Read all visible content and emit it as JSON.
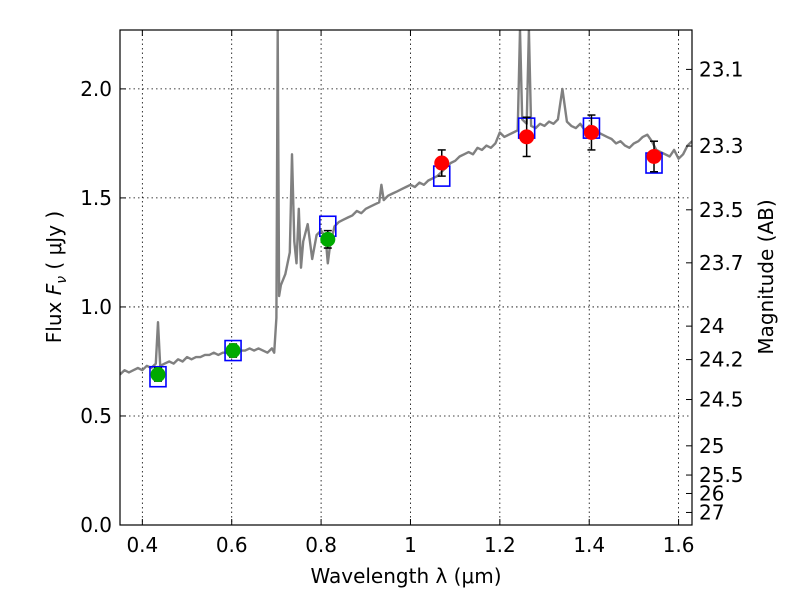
{
  "chart_data": {
    "type": "scatter",
    "title": "",
    "xlabel": "Wavelength  λ (μm)",
    "ylabel": "Flux  F_ν  ( μJy )",
    "ylabel_parts": {
      "prefix": "Flux  ",
      "symbol": "F",
      "subscript": "ν",
      "unit": "  ( μJy )"
    },
    "y2label": "Magnitude (AB)",
    "xlim": [
      0.35,
      1.63
    ],
    "ylim": [
      0.0,
      2.27
    ],
    "grid": true,
    "x_ticks": [
      {
        "value": 0.4,
        "label": "0.4"
      },
      {
        "value": 0.6,
        "label": "0.6"
      },
      {
        "value": 0.8,
        "label": "0.8"
      },
      {
        "value": 1.0,
        "label": "1"
      },
      {
        "value": 1.2,
        "label": "1.2"
      },
      {
        "value": 1.4,
        "label": "1.4"
      },
      {
        "value": 1.6,
        "label": "1.6"
      }
    ],
    "y_ticks": [
      {
        "value": 0.0,
        "label": "0.0"
      },
      {
        "value": 0.5,
        "label": "0.5"
      },
      {
        "value": 1.0,
        "label": "1.0"
      },
      {
        "value": 1.5,
        "label": "1.5"
      },
      {
        "value": 2.0,
        "label": "2.0"
      }
    ],
    "y2_ticks": [
      {
        "value": 23.1,
        "label": "23.1"
      },
      {
        "value": 23.3,
        "label": "23.3"
      },
      {
        "value": 23.5,
        "label": "23.5"
      },
      {
        "value": 23.7,
        "label": "23.7"
      },
      {
        "value": 24.0,
        "label": "24"
      },
      {
        "value": 24.2,
        "label": "24.2"
      },
      {
        "value": 24.5,
        "label": "24.5"
      },
      {
        "value": 25.0,
        "label": "25"
      },
      {
        "value": 25.5,
        "label": "25.5"
      },
      {
        "value": 26.0,
        "label": "26"
      },
      {
        "value": 27.0,
        "label": "27"
      }
    ],
    "colors": {
      "spectrum": "#808080",
      "model_squares": "#0000ff",
      "green_points": "#00aa00",
      "red_points": "#ff0000",
      "errorbars": "#000000",
      "grid": "#000000"
    },
    "series": [
      {
        "kind": "line",
        "x": [
          0.35,
          0.36,
          0.37,
          0.38,
          0.39,
          0.4,
          0.41,
          0.42,
          0.43,
          0.435,
          0.44,
          0.45,
          0.46,
          0.47,
          0.48,
          0.49,
          0.5,
          0.51,
          0.52,
          0.53,
          0.54,
          0.55,
          0.56,
          0.57,
          0.58,
          0.59,
          0.6,
          0.61,
          0.62,
          0.63,
          0.64,
          0.65,
          0.66,
          0.67,
          0.68,
          0.69,
          0.695,
          0.7,
          0.703,
          0.706,
          0.71,
          0.72,
          0.73,
          0.735,
          0.74,
          0.745,
          0.75,
          0.755,
          0.76,
          0.77,
          0.78,
          0.79,
          0.8,
          0.81,
          0.815,
          0.82,
          0.83,
          0.84,
          0.85,
          0.86,
          0.87,
          0.88,
          0.89,
          0.9,
          0.91,
          0.92,
          0.93,
          0.935,
          0.94,
          0.945,
          0.95,
          0.96,
          0.97,
          0.98,
          0.99,
          1.0,
          1.01,
          1.02,
          1.03,
          1.04,
          1.05,
          1.06,
          1.07,
          1.08,
          1.09,
          1.1,
          1.11,
          1.12,
          1.13,
          1.14,
          1.15,
          1.16,
          1.17,
          1.18,
          1.19,
          1.2,
          1.21,
          1.22,
          1.23,
          1.24,
          1.245,
          1.25,
          1.26,
          1.265,
          1.27,
          1.28,
          1.29,
          1.3,
          1.31,
          1.32,
          1.33,
          1.34,
          1.35,
          1.36,
          1.37,
          1.38,
          1.39,
          1.4,
          1.41,
          1.42,
          1.43,
          1.44,
          1.45,
          1.46,
          1.47,
          1.48,
          1.49,
          1.5,
          1.51,
          1.52,
          1.53,
          1.54,
          1.55,
          1.56,
          1.57,
          1.58,
          1.59,
          1.6,
          1.61,
          1.62,
          1.63
        ],
        "y": [
          0.69,
          0.71,
          0.7,
          0.71,
          0.72,
          0.71,
          0.73,
          0.72,
          0.74,
          0.93,
          0.73,
          0.74,
          0.75,
          0.74,
          0.76,
          0.75,
          0.77,
          0.76,
          0.77,
          0.77,
          0.78,
          0.78,
          0.79,
          0.78,
          0.79,
          0.79,
          0.8,
          0.79,
          0.8,
          0.8,
          0.81,
          0.8,
          0.81,
          0.8,
          0.79,
          0.81,
          0.79,
          0.95,
          2.27,
          1.05,
          1.1,
          1.15,
          1.25,
          1.7,
          1.3,
          1.2,
          1.45,
          1.18,
          1.3,
          1.38,
          1.22,
          1.33,
          1.35,
          1.32,
          1.2,
          1.28,
          1.37,
          1.39,
          1.4,
          1.41,
          1.42,
          1.44,
          1.43,
          1.45,
          1.46,
          1.47,
          1.48,
          1.56,
          1.49,
          1.5,
          1.51,
          1.52,
          1.53,
          1.54,
          1.55,
          1.56,
          1.55,
          1.57,
          1.56,
          1.58,
          1.59,
          1.6,
          1.62,
          1.64,
          1.66,
          1.67,
          1.69,
          1.7,
          1.71,
          1.7,
          1.73,
          1.72,
          1.74,
          1.73,
          1.75,
          1.8,
          1.78,
          1.79,
          1.8,
          1.81,
          2.27,
          1.86,
          1.84,
          2.27,
          1.83,
          1.82,
          1.84,
          1.83,
          1.85,
          1.84,
          1.86,
          2.0,
          1.85,
          1.83,
          1.82,
          1.84,
          1.81,
          1.83,
          1.82,
          1.8,
          1.79,
          1.78,
          1.77,
          1.75,
          1.76,
          1.74,
          1.73,
          1.75,
          1.76,
          1.78,
          1.79,
          1.76,
          1.72,
          1.71,
          1.7,
          1.69,
          1.72,
          1.68,
          1.7,
          1.74,
          1.76
        ]
      },
      {
        "kind": "squares",
        "x": [
          0.435,
          0.603,
          0.815,
          1.07,
          1.26,
          1.405,
          1.545
        ],
        "y": [
          0.68,
          0.8,
          1.37,
          1.6,
          1.82,
          1.82,
          1.66
        ]
      },
      {
        "kind": "points",
        "color": "green",
        "x": [
          0.435,
          0.603,
          0.815
        ],
        "y": [
          0.69,
          0.8,
          1.31
        ],
        "yerr": [
          0.03,
          0.03,
          0.04
        ]
      },
      {
        "kind": "points",
        "color": "red",
        "x": [
          1.07,
          1.26,
          1.405,
          1.545
        ],
        "y": [
          1.66,
          1.78,
          1.8,
          1.69
        ],
        "yerr": [
          0.06,
          0.09,
          0.08,
          0.07
        ]
      }
    ]
  }
}
